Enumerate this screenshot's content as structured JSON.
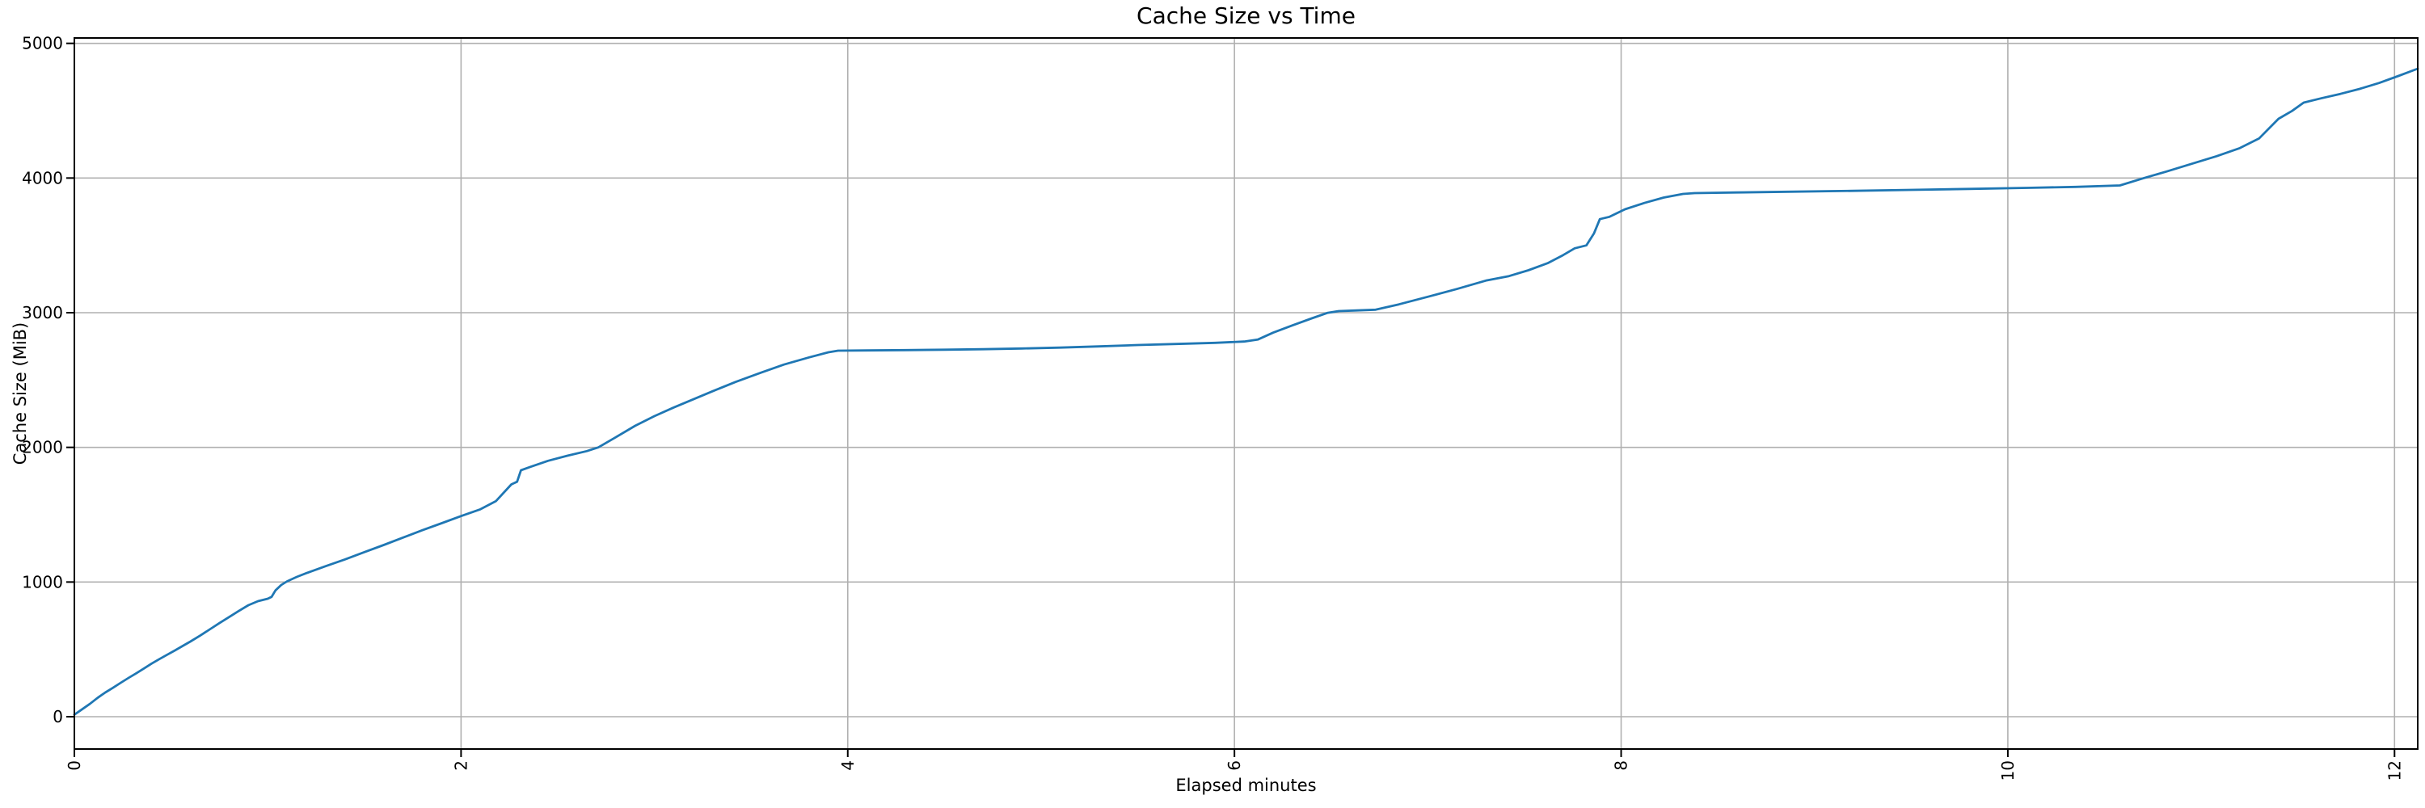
{
  "chart_data": {
    "type": "line",
    "title": "Cache Size vs Time",
    "xlabel": "Elapsed minutes",
    "ylabel": "Cache Size (MiB)",
    "x_ticks": [
      "0",
      "2",
      "4",
      "6",
      "8",
      "10",
      "12"
    ],
    "x_tick_values": [
      0,
      2,
      4,
      6,
      8,
      10,
      12
    ],
    "x_tick_rotation_deg": 90,
    "y_ticks": [
      "0",
      "1000",
      "2000",
      "3000",
      "4000",
      "5000"
    ],
    "y_tick_values": [
      0,
      1000,
      2000,
      3000,
      4000,
      5000
    ],
    "xlim": [
      0,
      12.12
    ],
    "ylim": [
      -240,
      5040
    ],
    "grid": true,
    "legend": "none",
    "colors": {
      "line": "#1f77b4",
      "grid": "#b0b0b0",
      "spine": "#000000",
      "text": "#000000",
      "background": "#ffffff"
    },
    "series": [
      {
        "name": "cache_size_mib",
        "points": [
          [
            0.0,
            15
          ],
          [
            0.04,
            55
          ],
          [
            0.08,
            95
          ],
          [
            0.12,
            140
          ],
          [
            0.16,
            180
          ],
          [
            0.2,
            215
          ],
          [
            0.24,
            252
          ],
          [
            0.28,
            288
          ],
          [
            0.32,
            322
          ],
          [
            0.36,
            358
          ],
          [
            0.4,
            395
          ],
          [
            0.44,
            428
          ],
          [
            0.48,
            460
          ],
          [
            0.52,
            492
          ],
          [
            0.56,
            525
          ],
          [
            0.6,
            558
          ],
          [
            0.65,
            602
          ],
          [
            0.7,
            648
          ],
          [
            0.75,
            695
          ],
          [
            0.8,
            740
          ],
          [
            0.85,
            785
          ],
          [
            0.9,
            828
          ],
          [
            0.95,
            858
          ],
          [
            1.0,
            876
          ],
          [
            1.02,
            890
          ],
          [
            1.04,
            938
          ],
          [
            1.07,
            978
          ],
          [
            1.1,
            1005
          ],
          [
            1.15,
            1038
          ],
          [
            1.2,
            1066
          ],
          [
            1.3,
            1118
          ],
          [
            1.4,
            1168
          ],
          [
            1.5,
            1222
          ],
          [
            1.6,
            1275
          ],
          [
            1.7,
            1330
          ],
          [
            1.8,
            1385
          ],
          [
            1.9,
            1437
          ],
          [
            2.0,
            1490
          ],
          [
            2.1,
            1540
          ],
          [
            2.18,
            1600
          ],
          [
            2.26,
            1725
          ],
          [
            2.29,
            1745
          ],
          [
            2.31,
            1830
          ],
          [
            2.36,
            1856
          ],
          [
            2.45,
            1900
          ],
          [
            2.55,
            1938
          ],
          [
            2.65,
            1972
          ],
          [
            2.71,
            2000
          ],
          [
            2.8,
            2075
          ],
          [
            2.9,
            2160
          ],
          [
            3.0,
            2232
          ],
          [
            3.1,
            2296
          ],
          [
            3.2,
            2356
          ],
          [
            3.3,
            2416
          ],
          [
            3.42,
            2486
          ],
          [
            3.55,
            2554
          ],
          [
            3.67,
            2615
          ],
          [
            3.8,
            2668
          ],
          [
            3.9,
            2706
          ],
          [
            3.95,
            2718
          ],
          [
            4.1,
            2720
          ],
          [
            4.3,
            2722
          ],
          [
            4.5,
            2725
          ],
          [
            4.7,
            2729
          ],
          [
            4.9,
            2734
          ],
          [
            5.1,
            2741
          ],
          [
            5.3,
            2750
          ],
          [
            5.5,
            2760
          ],
          [
            5.7,
            2768
          ],
          [
            5.9,
            2776
          ],
          [
            6.05,
            2786
          ],
          [
            6.12,
            2800
          ],
          [
            6.2,
            2852
          ],
          [
            6.3,
            2906
          ],
          [
            6.4,
            2958
          ],
          [
            6.48,
            2998
          ],
          [
            6.54,
            3012
          ],
          [
            6.62,
            3016
          ],
          [
            6.73,
            3022
          ],
          [
            6.85,
            3062
          ],
          [
            7.0,
            3118
          ],
          [
            7.15,
            3176
          ],
          [
            7.3,
            3238
          ],
          [
            7.42,
            3272
          ],
          [
            7.52,
            3315
          ],
          [
            7.62,
            3368
          ],
          [
            7.7,
            3428
          ],
          [
            7.76,
            3478
          ],
          [
            7.82,
            3500
          ],
          [
            7.86,
            3590
          ],
          [
            7.89,
            3695
          ],
          [
            7.94,
            3712
          ],
          [
            8.02,
            3768
          ],
          [
            8.12,
            3815
          ],
          [
            8.22,
            3855
          ],
          [
            8.32,
            3882
          ],
          [
            8.38,
            3888
          ],
          [
            8.6,
            3893
          ],
          [
            8.9,
            3899
          ],
          [
            9.2,
            3905
          ],
          [
            9.5,
            3912
          ],
          [
            9.8,
            3919
          ],
          [
            10.1,
            3927
          ],
          [
            10.35,
            3934
          ],
          [
            10.58,
            3945
          ],
          [
            10.7,
            3998
          ],
          [
            10.82,
            4048
          ],
          [
            10.95,
            4105
          ],
          [
            11.08,
            4162
          ],
          [
            11.2,
            4222
          ],
          [
            11.3,
            4295
          ],
          [
            11.4,
            4440
          ],
          [
            11.47,
            4498
          ],
          [
            11.53,
            4560
          ],
          [
            11.62,
            4592
          ],
          [
            11.72,
            4625
          ],
          [
            11.82,
            4662
          ],
          [
            11.92,
            4706
          ],
          [
            12.02,
            4758
          ],
          [
            12.12,
            4812
          ]
        ]
      }
    ]
  }
}
